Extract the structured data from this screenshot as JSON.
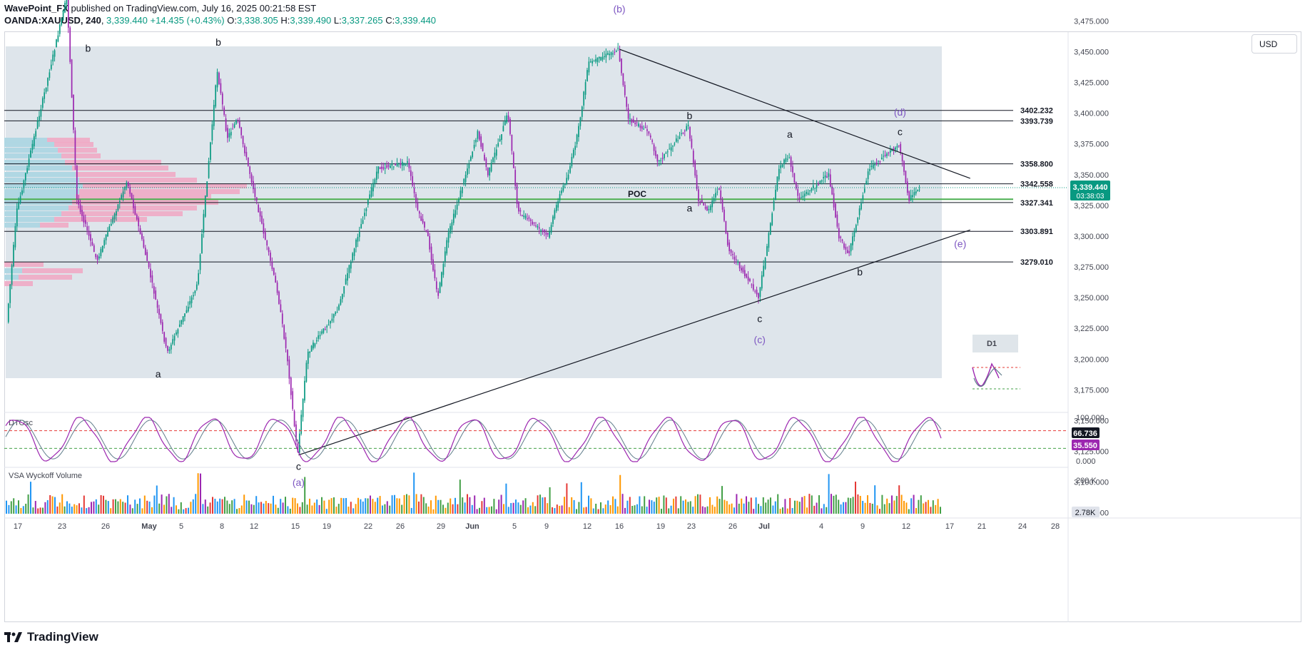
{
  "header": {
    "publisher": "WavePoint_FX",
    "published_text": "published on TradingView.com, July 16, 2025 00:21:58 EST",
    "symbol": "OANDA:XAUUSD, 240",
    "last": "3,339.440",
    "change": "+14.435 (+0.43%)",
    "o_label": "O:",
    "o_value": "3,338.305",
    "h_label": "H:",
    "h_value": "3,339.490",
    "l_label": "L:",
    "l_value": "3,337.265",
    "c_label": "C:",
    "c_value": "3,339.440"
  },
  "currency_button": "USD",
  "logo_text": "TradingView",
  "colors": {
    "up": "#089981",
    "down": "#9c27b0",
    "wave_label": "#7e57c2",
    "pattern_bg": "#d8e1e8",
    "poc_line": "#4caf50",
    "vp_up": "#a8dbe6",
    "vp_down": "#f1a7c3"
  },
  "chart_data": [
    {
      "type": "candlestick",
      "symbol": "OANDA:XAUUSD",
      "timeframe": "240",
      "ylim": [
        3060,
        3510
      ],
      "y_ticks": [
        3075,
        3100,
        3125,
        3150,
        3175,
        3200,
        3225,
        3250,
        3275,
        3300,
        3325,
        3350,
        3375,
        3400,
        3425,
        3450,
        3475
      ],
      "y_tick_labels": [
        "3,075.000",
        "3,100.000",
        "3,125.000",
        "3,150.000",
        "3,175.000",
        "3,200.000",
        "3,225.000",
        "3,250.000",
        "3,275.000",
        "3,300.000",
        "3,325.000",
        "3,350.000",
        "3,375.000",
        "3,400.000",
        "3,425.000",
        "3,450.000",
        "3,475.000"
      ],
      "x_tick_labels": [
        "17",
        "23",
        "26",
        "May",
        "5",
        "8",
        "12",
        "15",
        "19",
        "22",
        "26",
        "29",
        "Jun",
        "5",
        "9",
        "12",
        "16",
        "19",
        "23",
        "26",
        "Jul",
        "4",
        "9",
        "12",
        "17",
        "21",
        "24",
        "28"
      ],
      "price_path": [
        [
          "Apr 16",
          3230
        ],
        [
          "Apr 17",
          3320
        ],
        [
          "Apr 22",
          3495
        ],
        [
          "Apr 23",
          3330
        ],
        [
          "Apr 25",
          3280
        ],
        [
          "Apr 28",
          3345
        ],
        [
          "Apr 30",
          3280
        ],
        [
          "May 2",
          3205
        ],
        [
          "May 5",
          3260
        ],
        [
          "May 7",
          3435
        ],
        [
          "May 8",
          3380
        ],
        [
          "May 9",
          3395
        ],
        [
          "May 12",
          3290
        ],
        [
          "May 13",
          3255
        ],
        [
          "May 14",
          3200
        ],
        [
          "May 15",
          3122
        ],
        [
          "May 16",
          3205
        ],
        [
          "May 19",
          3240
        ],
        [
          "May 21",
          3300
        ],
        [
          "May 23",
          3355
        ],
        [
          "May 26",
          3360
        ],
        [
          "May 27",
          3320
        ],
        [
          "May 28",
          3300
        ],
        [
          "May 29",
          3250
        ],
        [
          "May 30",
          3300
        ],
        [
          "Jun 2",
          3385
        ],
        [
          "Jun 3",
          3350
        ],
        [
          "Jun 5",
          3400
        ],
        [
          "Jun 6",
          3320
        ],
        [
          "Jun 9",
          3300
        ],
        [
          "Jun 10",
          3330
        ],
        [
          "Jun 11",
          3350
        ],
        [
          "Jun 12",
          3385
        ],
        [
          "Jun 13",
          3440
        ],
        [
          "Jun 16",
          3452
        ],
        [
          "Jun 17",
          3395
        ],
        [
          "Jun 18",
          3390
        ],
        [
          "Jun 19",
          3385
        ],
        [
          "Jun 20",
          3360
        ],
        [
          "Jun 23",
          3390
        ],
        [
          "Jun 24",
          3330
        ],
        [
          "Jun 25",
          3320
        ],
        [
          "Jun 26",
          3340
        ],
        [
          "Jun 27",
          3290
        ],
        [
          "Jun 30",
          3250
        ],
        [
          "Jul 1",
          3300
        ],
        [
          "Jul 2",
          3355
        ],
        [
          "Jul 3",
          3365
        ],
        [
          "Jul 4",
          3330
        ],
        [
          "Jul 7",
          3350
        ],
        [
          "Jul 8",
          3300
        ],
        [
          "Jul 9",
          3285
        ],
        [
          "Jul 10",
          3320
        ],
        [
          "Jul 11",
          3355
        ],
        [
          "Jul 14",
          3375
        ],
        [
          "Jul 15",
          3330
        ],
        [
          "Jul 16",
          3339.44
        ]
      ],
      "last_price_label": "3,339.440",
      "countdown_label": "03:38:03"
    },
    {
      "type": "horizontal_levels",
      "levels": [
        {
          "label": "3402.232",
          "value": 3402.232
        },
        {
          "label": "3393.739",
          "value": 3393.739
        },
        {
          "label": "3358.800",
          "value": 3358.8
        },
        {
          "label": "3342.558",
          "value": 3342.558
        },
        {
          "label": "3327.341",
          "value": 3327.341
        },
        {
          "label": "3303.891",
          "value": 3303.891
        },
        {
          "label": "3279.010",
          "value": 3279.01
        }
      ],
      "poc_label": "POC",
      "poc_value": 3330
    },
    {
      "type": "trendlines",
      "lines": [
        {
          "name": "upper",
          "from": [
            "Jun 16",
            3452
          ],
          "to": [
            "Jul 21",
            3347
          ]
        },
        {
          "name": "lower",
          "from": [
            "May 15",
            3122
          ],
          "to": [
            "Jul 21",
            3305
          ]
        }
      ]
    },
    {
      "type": "wave_labels",
      "minor": [
        {
          "text": "b",
          "at": [
            "Apr 24",
            3450
          ]
        },
        {
          "text": "a",
          "at": [
            "May 1",
            3185
          ]
        },
        {
          "text": "b",
          "at": [
            "May 7",
            3455
          ]
        },
        {
          "text": "c",
          "at": [
            "May 15",
            3110
          ]
        },
        {
          "text": "b",
          "at": [
            "Jun 23",
            3395
          ]
        },
        {
          "text": "a",
          "at": [
            "Jun 23",
            3320
          ]
        },
        {
          "text": "c",
          "at": [
            "Jun 30",
            3230
          ]
        },
        {
          "text": "a",
          "at": [
            "Jul 3",
            3380
          ]
        },
        {
          "text": "b",
          "at": [
            "Jul 10",
            3268
          ]
        },
        {
          "text": "c",
          "at": [
            "Jul 14",
            3382
          ]
        }
      ],
      "major": [
        {
          "text": "(a)",
          "at": [
            "May 15",
            3097
          ]
        },
        {
          "text": "(b)",
          "at": [
            "Jun 16",
            3482
          ]
        },
        {
          "text": "(c)",
          "at": [
            "Jun 30",
            3213
          ]
        },
        {
          "text": "(d)",
          "at": [
            "Jul 14",
            3398
          ]
        },
        {
          "text": "(e)",
          "at": [
            "Jul 20",
            3291
          ]
        }
      ]
    },
    {
      "type": "line",
      "name": "DTOsc",
      "ylim": [
        -10,
        110
      ],
      "y_tick_labels": [
        "100.000",
        "0.000"
      ],
      "levels": [
        70,
        30
      ],
      "values_fast": [
        66.736
      ],
      "values_slow": [
        35.55
      ],
      "last_fast_label": "66.736",
      "last_slow_label": "35.550"
    },
    {
      "type": "bar",
      "name": "VSA Wyckoff Volume",
      "y_tick_labels": [
        "200 K"
      ],
      "last_label": "2.78K"
    },
    {
      "type": "annotation",
      "text": "D1"
    }
  ]
}
